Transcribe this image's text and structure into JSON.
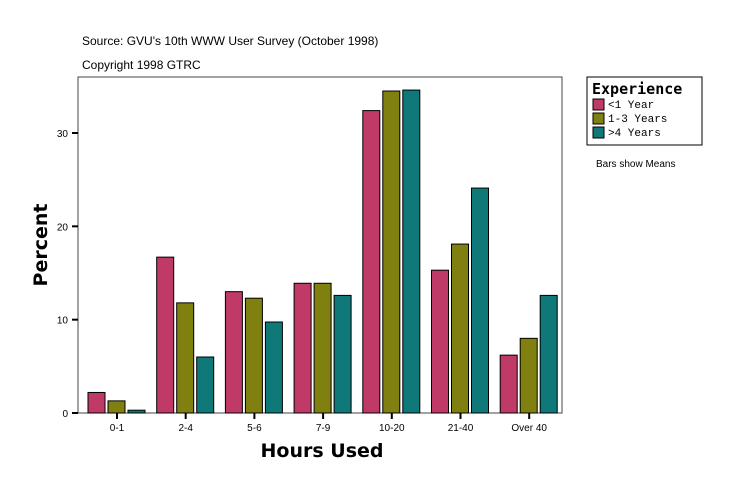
{
  "chart_data": {
    "type": "bar",
    "title_lines": [
      "Source: GVU's 10th WWW User Survey (October 1998)",
      "Copyright 1998 GTRC"
    ],
    "xlabel": "Hours Used",
    "ylabel": "Percent",
    "ylim": [
      0,
      36
    ],
    "yticks": [
      0,
      10,
      20,
      30
    ],
    "categories": [
      "0-1",
      "2-4",
      "5-6",
      "7-9",
      "10-20",
      "21-40",
      "Over 40"
    ],
    "series": [
      {
        "name": "<1 Year",
        "color": "#bf3a66",
        "values": [
          2.2,
          16.7,
          13.0,
          13.9,
          32.4,
          15.3,
          6.2
        ]
      },
      {
        "name": "1-3 Years",
        "color": "#808010",
        "values": [
          1.3,
          11.8,
          12.3,
          13.9,
          34.5,
          18.1,
          8.0
        ]
      },
      {
        "name": ">4 Years",
        "color": "#0f7878",
        "values": [
          0.3,
          6.0,
          9.75,
          12.6,
          34.6,
          24.1,
          12.6
        ]
      }
    ],
    "legend": {
      "title": "Experience",
      "placement": "right"
    },
    "note": "Bars show Means",
    "grid": false
  }
}
